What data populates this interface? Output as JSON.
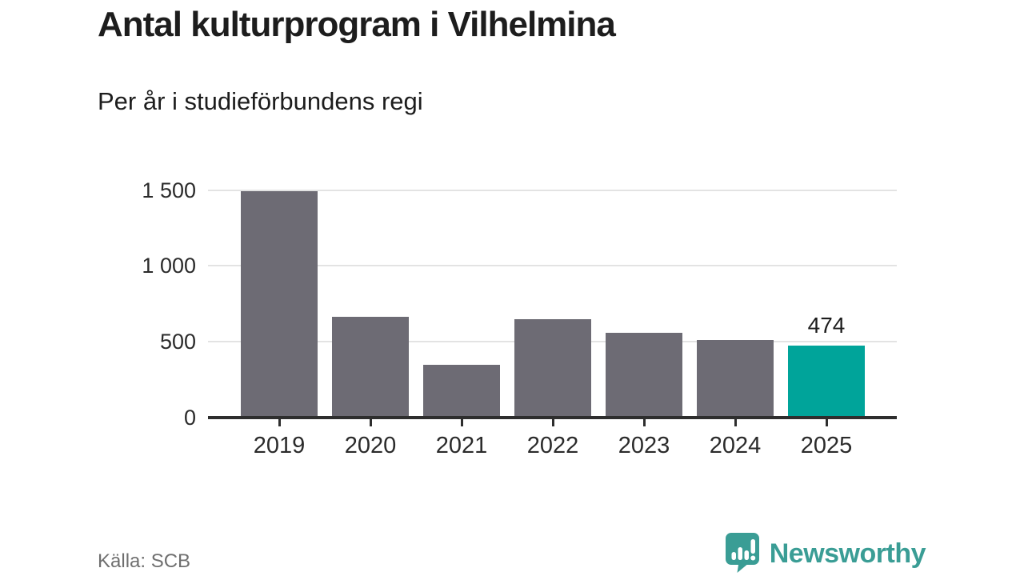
{
  "chart_data": {
    "type": "bar",
    "title": "Antal kulturprogram i Vilhelmina",
    "subtitle": "Per år i studieförbundens regi",
    "categories": [
      "2019",
      "2020",
      "2021",
      "2022",
      "2023",
      "2024",
      "2025"
    ],
    "values": [
      1490,
      665,
      350,
      650,
      557,
      510,
      474
    ],
    "xlabel": "",
    "ylabel": "",
    "ylim": [
      0,
      1500
    ],
    "y_ticks": [
      {
        "value": 0,
        "label": "0"
      },
      {
        "value": 500,
        "label": "500"
      },
      {
        "value": 1000,
        "label": "1 000"
      },
      {
        "value": 1500,
        "label": "1 500"
      }
    ],
    "grid": "horizontal-light",
    "legend": "none",
    "bar_color": "#6d6b74",
    "highlight_index": 6,
    "highlight_color": "#00a49a",
    "annotation": {
      "index": 6,
      "text": "474"
    }
  },
  "footer": {
    "source": "Källa: SCB",
    "brand": "Newsworthy",
    "brand_color": "#3a9d95",
    "brand_icon": "bar-chart-speech-bubble-icon"
  }
}
